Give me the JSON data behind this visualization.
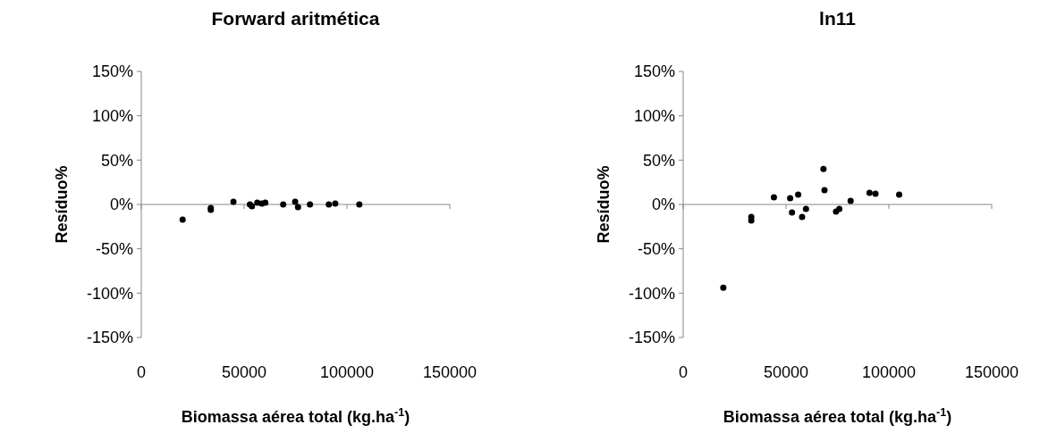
{
  "chart_data": [
    {
      "type": "scatter",
      "title": "Forward aritmética",
      "xlabel": "Biomassa aérea total (kg.ha$^{-1}$)",
      "ylabel": "Resíduo%",
      "marker": "circle",
      "xlim": [
        0,
        150000
      ],
      "xticks": [
        0,
        50000,
        100000,
        150000
      ],
      "ylim": [
        -150,
        150
      ],
      "yticks": [
        {
          "value": -150,
          "label": "-150%"
        },
        {
          "value": -100,
          "label": "-100%"
        },
        {
          "value": -50,
          "label": "-50%"
        },
        {
          "value": 0,
          "label": "0%"
        },
        {
          "value": 50,
          "label": "50%"
        },
        {
          "value": 100,
          "label": "100%"
        },
        {
          "value": 150,
          "label": "150%"
        }
      ],
      "series": [
        {
          "color": "#000000",
          "x": [
            20100,
            33800,
            33800,
            44800,
            52800,
            53800,
            56400,
            58600,
            60300,
            69000,
            74800,
            76200,
            82000,
            91200,
            94300,
            106000
          ],
          "values": [
            -17,
            -4,
            -6,
            3,
            0,
            -2,
            2,
            1,
            2,
            0,
            3,
            -3,
            0,
            0,
            1,
            0
          ]
        }
      ]
    },
    {
      "type": "scatter",
      "title": "ln11",
      "xlabel": "Biomassa aérea total (kg.ha$^{-1}$)",
      "ylabel": "Resíduo%",
      "marker": "circle",
      "xlim": [
        0,
        150000
      ],
      "xticks": [
        0,
        50000,
        100000,
        150000
      ],
      "ylim": [
        -150,
        150
      ],
      "yticks": [
        {
          "value": -150,
          "label": "-150%"
        },
        {
          "value": -100,
          "label": "-100%"
        },
        {
          "value": -50,
          "label": "-50%"
        },
        {
          "value": 0,
          "label": "0%"
        },
        {
          "value": 50,
          "label": "50%"
        },
        {
          "value": 100,
          "label": "100%"
        },
        {
          "value": 150,
          "label": "150%"
        }
      ],
      "series": [
        {
          "color": "#000000",
          "x": [
            19500,
            33100,
            33100,
            44100,
            52000,
            52900,
            55900,
            57800,
            59700,
            68200,
            68700,
            74300,
            75900,
            81400,
            90600,
            93500,
            105000
          ],
          "values": [
            -94,
            -14,
            -18,
            8,
            7,
            -9,
            11,
            -14,
            -5,
            40,
            16,
            -8,
            -5,
            4,
            13,
            12,
            11
          ]
        }
      ]
    }
  ]
}
